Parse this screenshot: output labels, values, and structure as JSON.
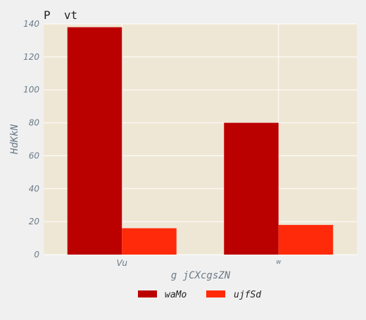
{
  "chart_data": {
    "type": "bar",
    "title": "P  vt",
    "xlabel": "g jCXcgsZN",
    "ylabel": "HdKkN",
    "categories": [
      "Vu",
      "w"
    ],
    "series": [
      {
        "name": "waMo",
        "values": [
          138,
          80
        ],
        "color": "#bb0000"
      },
      {
        "name": "ujfSd",
        "values": [
          16,
          18
        ],
        "color": "#ff2a0a"
      }
    ],
    "ylim": [
      0,
      140
    ],
    "yticks": [
      0,
      20,
      40,
      60,
      80,
      100,
      120,
      140
    ],
    "grid": true,
    "legend_position": "bottom-center",
    "plot_background": "#efe7d5"
  }
}
